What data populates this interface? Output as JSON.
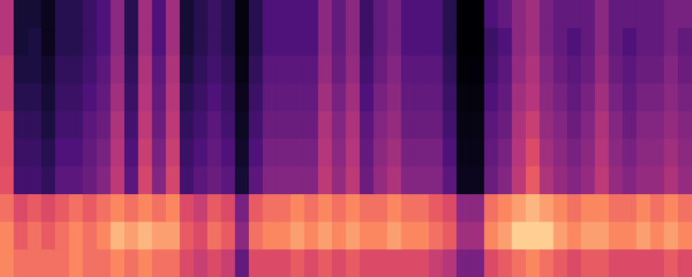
{
  "chart_data": {
    "type": "heatmap",
    "color": "magma",
    "zlim": [
      0,
      1
    ],
    "tick_labels": false,
    "grid": false,
    "cells": [
      [
        0.5,
        0.1,
        0.1,
        0.05,
        0.15,
        0.15,
        0.2,
        0.25,
        0.4,
        0.15,
        0.45,
        0.25,
        0.45,
        0.1,
        0.15,
        0.2,
        0.15,
        0.02,
        0.15,
        0.25,
        0.25,
        0.25,
        0.25,
        0.4,
        0.3,
        0.4,
        0.2,
        0.3,
        0.35,
        0.25,
        0.25,
        0.25,
        0.15,
        0.0,
        0.0,
        0.25,
        0.3,
        0.4,
        0.45,
        0.35,
        0.3,
        0.3,
        0.3,
        0.4,
        0.3,
        0.3,
        0.3,
        0.3,
        0.35,
        0.35
      ],
      [
        0.5,
        0.1,
        0.12,
        0.05,
        0.15,
        0.15,
        0.2,
        0.25,
        0.4,
        0.15,
        0.45,
        0.25,
        0.45,
        0.1,
        0.15,
        0.2,
        0.15,
        0.02,
        0.15,
        0.25,
        0.25,
        0.25,
        0.25,
        0.4,
        0.3,
        0.4,
        0.2,
        0.3,
        0.35,
        0.25,
        0.25,
        0.25,
        0.15,
        0.0,
        0.0,
        0.2,
        0.25,
        0.4,
        0.45,
        0.35,
        0.3,
        0.25,
        0.3,
        0.4,
        0.3,
        0.25,
        0.3,
        0.3,
        0.35,
        0.3
      ],
      [
        0.55,
        0.12,
        0.12,
        0.08,
        0.18,
        0.18,
        0.22,
        0.28,
        0.42,
        0.18,
        0.48,
        0.28,
        0.48,
        0.12,
        0.18,
        0.22,
        0.18,
        0.03,
        0.18,
        0.28,
        0.28,
        0.28,
        0.28,
        0.42,
        0.32,
        0.42,
        0.22,
        0.32,
        0.38,
        0.28,
        0.28,
        0.28,
        0.18,
        0.01,
        0.01,
        0.22,
        0.28,
        0.42,
        0.48,
        0.38,
        0.32,
        0.28,
        0.32,
        0.42,
        0.32,
        0.28,
        0.32,
        0.32,
        0.38,
        0.32
      ],
      [
        0.55,
        0.15,
        0.15,
        0.1,
        0.2,
        0.2,
        0.25,
        0.3,
        0.45,
        0.2,
        0.5,
        0.3,
        0.5,
        0.15,
        0.2,
        0.25,
        0.2,
        0.05,
        0.2,
        0.3,
        0.3,
        0.3,
        0.3,
        0.45,
        0.35,
        0.45,
        0.25,
        0.35,
        0.4,
        0.3,
        0.3,
        0.3,
        0.2,
        0.02,
        0.02,
        0.25,
        0.3,
        0.45,
        0.5,
        0.4,
        0.35,
        0.3,
        0.35,
        0.45,
        0.35,
        0.3,
        0.35,
        0.35,
        0.4,
        0.35
      ],
      [
        0.6,
        0.18,
        0.18,
        0.12,
        0.22,
        0.22,
        0.28,
        0.32,
        0.48,
        0.22,
        0.52,
        0.32,
        0.52,
        0.18,
        0.22,
        0.28,
        0.22,
        0.06,
        0.22,
        0.32,
        0.32,
        0.32,
        0.32,
        0.48,
        0.38,
        0.48,
        0.28,
        0.38,
        0.42,
        0.32,
        0.32,
        0.32,
        0.22,
        0.03,
        0.03,
        0.28,
        0.32,
        0.48,
        0.55,
        0.42,
        0.38,
        0.32,
        0.38,
        0.48,
        0.38,
        0.32,
        0.38,
        0.38,
        0.42,
        0.38
      ],
      [
        0.6,
        0.2,
        0.2,
        0.15,
        0.25,
        0.25,
        0.3,
        0.35,
        0.5,
        0.25,
        0.55,
        0.35,
        0.55,
        0.2,
        0.25,
        0.3,
        0.25,
        0.08,
        0.25,
        0.35,
        0.35,
        0.35,
        0.35,
        0.5,
        0.4,
        0.5,
        0.3,
        0.4,
        0.45,
        0.35,
        0.35,
        0.35,
        0.25,
        0.04,
        0.04,
        0.3,
        0.35,
        0.5,
        0.6,
        0.45,
        0.4,
        0.35,
        0.4,
        0.5,
        0.4,
        0.35,
        0.4,
        0.4,
        0.45,
        0.4
      ],
      [
        0.62,
        0.22,
        0.22,
        0.18,
        0.28,
        0.28,
        0.32,
        0.38,
        0.52,
        0.28,
        0.58,
        0.38,
        0.58,
        0.22,
        0.28,
        0.32,
        0.28,
        0.1,
        0.28,
        0.38,
        0.38,
        0.38,
        0.38,
        0.52,
        0.42,
        0.52,
        0.32,
        0.42,
        0.48,
        0.38,
        0.38,
        0.38,
        0.28,
        0.05,
        0.05,
        0.32,
        0.38,
        0.52,
        0.65,
        0.48,
        0.42,
        0.38,
        0.42,
        0.52,
        0.42,
        0.38,
        0.42,
        0.42,
        0.48,
        0.42
      ],
      [
        0.7,
        0.6,
        0.65,
        0.6,
        0.65,
        0.7,
        0.65,
        0.7,
        0.75,
        0.7,
        0.75,
        0.7,
        0.75,
        0.6,
        0.55,
        0.65,
        0.6,
        0.35,
        0.65,
        0.7,
        0.7,
        0.75,
        0.7,
        0.75,
        0.7,
        0.75,
        0.7,
        0.7,
        0.75,
        0.7,
        0.7,
        0.65,
        0.6,
        0.4,
        0.4,
        0.7,
        0.75,
        0.8,
        0.85,
        0.8,
        0.75,
        0.7,
        0.75,
        0.75,
        0.7,
        0.7,
        0.75,
        0.7,
        0.75,
        0.7
      ],
      [
        0.75,
        0.65,
        0.7,
        0.65,
        0.7,
        0.75,
        0.7,
        0.75,
        0.85,
        0.8,
        0.85,
        0.8,
        0.8,
        0.65,
        0.6,
        0.7,
        0.65,
        0.4,
        0.7,
        0.75,
        0.75,
        0.8,
        0.75,
        0.8,
        0.75,
        0.8,
        0.75,
        0.75,
        0.8,
        0.75,
        0.75,
        0.7,
        0.65,
        0.45,
        0.45,
        0.75,
        0.8,
        0.9,
        0.9,
        0.9,
        0.8,
        0.75,
        0.8,
        0.8,
        0.75,
        0.75,
        0.8,
        0.75,
        0.8,
        0.75
      ],
      [
        0.75,
        0.7,
        0.7,
        0.7,
        0.7,
        0.75,
        0.7,
        0.7,
        0.75,
        0.7,
        0.75,
        0.7,
        0.7,
        0.6,
        0.55,
        0.6,
        0.55,
        0.3,
        0.6,
        0.6,
        0.6,
        0.65,
        0.6,
        0.65,
        0.6,
        0.65,
        0.6,
        0.6,
        0.6,
        0.6,
        0.6,
        0.55,
        0.5,
        0.35,
        0.35,
        0.6,
        0.65,
        0.7,
        0.75,
        0.7,
        0.65,
        0.6,
        0.65,
        0.65,
        0.6,
        0.6,
        0.6,
        0.6,
        0.65,
        0.6
      ]
    ]
  }
}
